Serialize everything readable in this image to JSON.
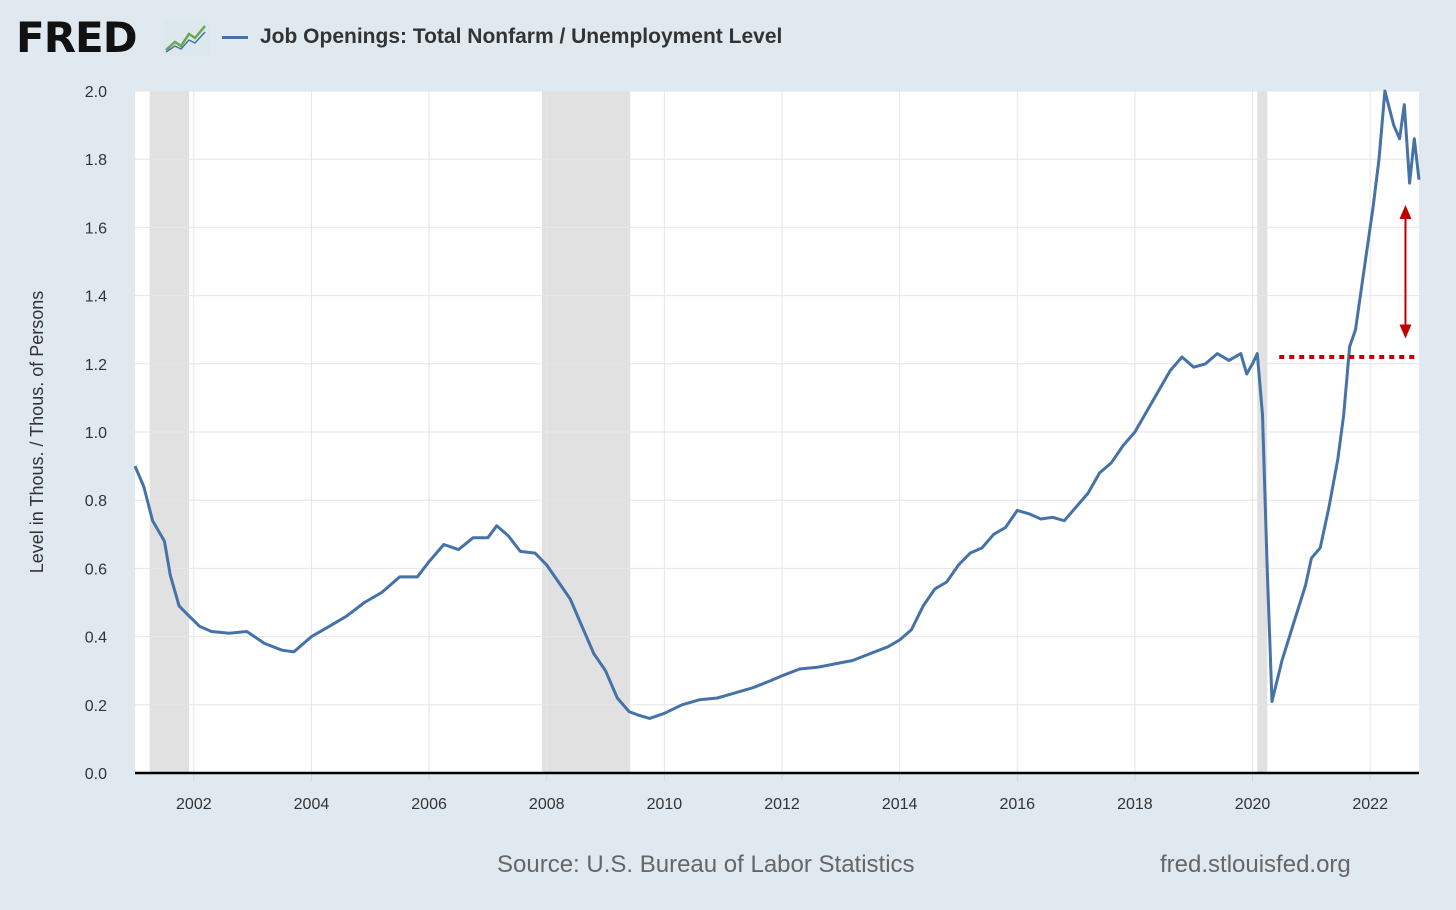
{
  "header": {
    "logo": "FRED",
    "logo_icon": "line-chart-icon"
  },
  "colors": {
    "background": "#e1e9f0",
    "plot_background": "#ffffff",
    "series": "#4572a7",
    "recession": "#e1e1e1",
    "annotation": "#c00000"
  },
  "chart_data": {
    "type": "line",
    "title": "",
    "ylabel": "Level in Thous. / Thous. of Persons",
    "xlabel": "",
    "ylim": [
      0,
      2.0
    ],
    "xlim": [
      2001.0,
      2022.83
    ],
    "yticks": [
      "0.0",
      "0.2",
      "0.4",
      "0.6",
      "0.8",
      "1.0",
      "1.2",
      "1.4",
      "1.6",
      "1.8",
      "2.0"
    ],
    "xticks": [
      "2002",
      "2004",
      "2006",
      "2008",
      "2010",
      "2012",
      "2014",
      "2016",
      "2018",
      "2020",
      "2022"
    ],
    "grid": true,
    "legend_position": "top-left",
    "series": [
      {
        "name": "Job Openings: Total Nonfarm / Unemployment Level",
        "points": [
          [
            2001.0,
            0.9
          ],
          [
            2001.15,
            0.84
          ],
          [
            2001.3,
            0.74
          ],
          [
            2001.5,
            0.68
          ],
          [
            2001.6,
            0.58
          ],
          [
            2001.75,
            0.49
          ],
          [
            2001.92,
            0.46
          ],
          [
            2002.1,
            0.43
          ],
          [
            2002.3,
            0.415
          ],
          [
            2002.6,
            0.41
          ],
          [
            2002.9,
            0.415
          ],
          [
            2003.2,
            0.38
          ],
          [
            2003.5,
            0.36
          ],
          [
            2003.7,
            0.355
          ],
          [
            2004.0,
            0.4
          ],
          [
            2004.3,
            0.43
          ],
          [
            2004.6,
            0.46
          ],
          [
            2004.9,
            0.5
          ],
          [
            2005.2,
            0.53
          ],
          [
            2005.5,
            0.575
          ],
          [
            2005.8,
            0.575
          ],
          [
            2006.0,
            0.62
          ],
          [
            2006.25,
            0.67
          ],
          [
            2006.5,
            0.655
          ],
          [
            2006.75,
            0.69
          ],
          [
            2007.0,
            0.69
          ],
          [
            2007.15,
            0.725
          ],
          [
            2007.35,
            0.695
          ],
          [
            2007.55,
            0.65
          ],
          [
            2007.8,
            0.645
          ],
          [
            2008.0,
            0.61
          ],
          [
            2008.2,
            0.56
          ],
          [
            2008.4,
            0.51
          ],
          [
            2008.6,
            0.43
          ],
          [
            2008.8,
            0.35
          ],
          [
            2009.0,
            0.3
          ],
          [
            2009.2,
            0.22
          ],
          [
            2009.4,
            0.18
          ],
          [
            2009.55,
            0.17
          ],
          [
            2009.75,
            0.16
          ],
          [
            2010.0,
            0.175
          ],
          [
            2010.3,
            0.2
          ],
          [
            2010.6,
            0.215
          ],
          [
            2010.9,
            0.22
          ],
          [
            2011.2,
            0.235
          ],
          [
            2011.5,
            0.25
          ],
          [
            2011.8,
            0.27
          ],
          [
            2012.0,
            0.285
          ],
          [
            2012.3,
            0.305
          ],
          [
            2012.6,
            0.31
          ],
          [
            2012.9,
            0.32
          ],
          [
            2013.2,
            0.33
          ],
          [
            2013.5,
            0.35
          ],
          [
            2013.8,
            0.37
          ],
          [
            2014.0,
            0.39
          ],
          [
            2014.2,
            0.42
          ],
          [
            2014.4,
            0.49
          ],
          [
            2014.6,
            0.54
          ],
          [
            2014.8,
            0.56
          ],
          [
            2015.0,
            0.61
          ],
          [
            2015.2,
            0.645
          ],
          [
            2015.4,
            0.66
          ],
          [
            2015.6,
            0.7
          ],
          [
            2015.8,
            0.72
          ],
          [
            2016.0,
            0.77
          ],
          [
            2016.2,
            0.76
          ],
          [
            2016.4,
            0.745
          ],
          [
            2016.6,
            0.75
          ],
          [
            2016.8,
            0.74
          ],
          [
            2017.0,
            0.78
          ],
          [
            2017.2,
            0.82
          ],
          [
            2017.4,
            0.88
          ],
          [
            2017.6,
            0.91
          ],
          [
            2017.8,
            0.96
          ],
          [
            2018.0,
            1.0
          ],
          [
            2018.2,
            1.06
          ],
          [
            2018.4,
            1.12
          ],
          [
            2018.6,
            1.18
          ],
          [
            2018.8,
            1.22
          ],
          [
            2019.0,
            1.19
          ],
          [
            2019.2,
            1.2
          ],
          [
            2019.4,
            1.23
          ],
          [
            2019.6,
            1.21
          ],
          [
            2019.8,
            1.23
          ],
          [
            2019.9,
            1.17
          ],
          [
            2020.0,
            1.2
          ],
          [
            2020.08,
            1.23
          ],
          [
            2020.17,
            1.05
          ],
          [
            2020.25,
            0.6
          ],
          [
            2020.33,
            0.21
          ],
          [
            2020.5,
            0.33
          ],
          [
            2020.7,
            0.44
          ],
          [
            2020.9,
            0.55
          ],
          [
            2021.0,
            0.63
          ],
          [
            2021.15,
            0.66
          ],
          [
            2021.3,
            0.78
          ],
          [
            2021.45,
            0.92
          ],
          [
            2021.55,
            1.05
          ],
          [
            2021.65,
            1.25
          ],
          [
            2021.75,
            1.3
          ],
          [
            2021.9,
            1.48
          ],
          [
            2022.05,
            1.66
          ],
          [
            2022.15,
            1.8
          ],
          [
            2022.25,
            2.0
          ],
          [
            2022.4,
            1.9
          ],
          [
            2022.5,
            1.86
          ],
          [
            2022.58,
            1.96
          ],
          [
            2022.67,
            1.73
          ],
          [
            2022.75,
            1.86
          ],
          [
            2022.83,
            1.74
          ]
        ]
      }
    ],
    "recessions": [
      [
        2001.25,
        2001.92
      ],
      [
        2007.92,
        2009.42
      ],
      [
        2020.08,
        2020.25
      ]
    ],
    "annotations": {
      "reference_line": {
        "y": 1.22,
        "x_start": 2020.25,
        "x_end": 2022.83,
        "style": "dotted"
      },
      "arrow": {
        "x": 2022.6,
        "y_from": 1.28,
        "y_to": 1.66,
        "direction": "both"
      }
    }
  },
  "footer": {
    "source": "Source: U.S. Bureau of Labor Statistics",
    "url": "fred.stlouisfed.org"
  }
}
